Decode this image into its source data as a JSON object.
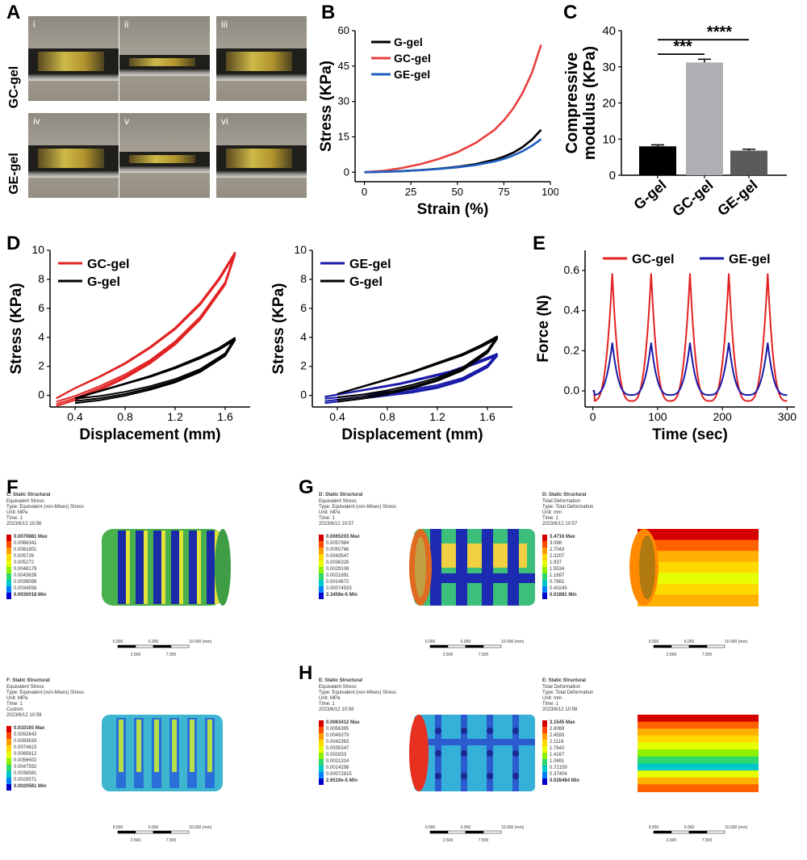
{
  "panels": {
    "A": {
      "letter": "A",
      "row_labels": [
        "GC-gel",
        "GE-gel"
      ],
      "cells": [
        "i",
        "ii",
        "iii",
        "iv",
        "v",
        "vi"
      ]
    },
    "B": {
      "letter": "B",
      "colors": {
        "G-gel": "#000000",
        "GC-gel": "#e8403f",
        "GE-gel": "#1f5fbf"
      }
    },
    "C": {
      "letter": "C",
      "colors": {
        "G-gel": "#000000",
        "GC-gel": "#b0adb5",
        "GE-gel": "#5a5a5a"
      }
    },
    "D": {
      "letter": "D"
    },
    "E": {
      "letter": "E"
    },
    "F": {
      "letter": "F",
      "top": {
        "title": "C: Static Structural",
        "lines": [
          "Equivalent Stress",
          "Type: Equivalent (von-Mises) Stress",
          "Unit: MPa",
          "Time: 1",
          "2023/6/12 10:56"
        ],
        "legend": [
          "0.0070881 Max",
          "0.0066341",
          "0.0061801",
          "0.005726",
          "0.005272",
          "0.0048179",
          "0.0043639",
          "0.0039099",
          "0.0034558",
          "0.0030018 Min"
        ],
        "scale": [
          "0.000",
          "5.000",
          "10.000 (mm)",
          "2.500",
          "7.500"
        ]
      },
      "bottom": {
        "title": "F: Static Structural",
        "lines": [
          "Equivalent Stress",
          "Type: Equivalent (von-Mises) Stress",
          "Unit: MPa",
          "Time: 1",
          "Custom",
          "2023/6/12 10:59"
        ],
        "legend": [
          "0.010165 Max",
          "0.0092643",
          "0.0083633",
          "0.0074623",
          "0.0065612",
          "0.0056602",
          "0.0047592",
          "0.0038581",
          "0.0029571",
          "0.0020561 Min"
        ],
        "scale": [
          "0.000",
          "5.000",
          "10.000 (mm)",
          "2.500",
          "7.500"
        ]
      }
    },
    "G": {
      "letter": "G",
      "left": {
        "title": "D: Static Structural",
        "lines": [
          "Equivalent Stress",
          "Type: Equivalent (von-Mises) Stress",
          "Unit: MPa",
          "Time: 1",
          "2023/6/12 10:57"
        ],
        "legend": [
          "0.0065203 Max",
          "0.0057984",
          "0.0050766",
          "0.0043547",
          "0.0036328",
          "0.0029109",
          "0.0021891",
          "0.0014672",
          "0.00074533",
          "2.3459e-5 Min"
        ],
        "scale": [
          "0.000",
          "5.000",
          "10.000 (mm)",
          "2.500",
          "7.500"
        ]
      },
      "right": {
        "title": "D: Static Structural",
        "lines": [
          "Total Deformation",
          "Type: Total Deformation",
          "Unit: mm",
          "Time: 1",
          "2023/6/12 10:57"
        ],
        "legend": [
          "3.4716 Max",
          "3.088",
          "2.7043",
          "2.3207",
          "1.937",
          "1.5534",
          "1.1697",
          "0.7861",
          "0.40245",
          "0.01881 Min"
        ],
        "scale": [
          "0.000",
          "5.000",
          "10.000 (mm)",
          "2.500",
          "7.500"
        ]
      }
    },
    "H": {
      "letter": "H",
      "left": {
        "title": "E: Static Structural",
        "lines": [
          "Equivalent Stress",
          "Type: Equivalent (von-Mises) Stress",
          "Unit: MPa",
          "Time: 1",
          "2023/6/12 10:58"
        ],
        "legend": [
          "0.0063412 Max",
          "0.0056395",
          "0.0049379",
          "0.0042363",
          "0.0035347",
          "0.002833",
          "0.0021314",
          "0.0014298",
          "0.00072815",
          "2.6519e-5 Min"
        ],
        "scale": [
          "0.000",
          "5.000",
          "10.000 (mm)",
          "2.500",
          "7.500"
        ]
      },
      "right": {
        "title": "E: Static Structural",
        "lines": [
          "Total Deformation",
          "Type: Total Deformation",
          "Unit: mm",
          "Time: 1",
          "2023/6/12 10:58"
        ],
        "legend": [
          "3.1545 Max",
          "2.8069",
          "2.4593",
          "2.1118",
          "1.7642",
          "1.4167",
          "1.0691",
          "0.72159",
          "0.37404",
          "0.026484 Min"
        ],
        "scale": [
          "0.000",
          "5.000",
          "10.000 (mm)",
          "2.500",
          "7.500"
        ]
      }
    },
    "fea_colors": [
      "#d40000",
      "#ff4a00",
      "#ff9a00",
      "#ffd800",
      "#e6ff00",
      "#8cf000",
      "#2fd86a",
      "#00c8c8",
      "#0080ff",
      "#0000c8"
    ]
  },
  "chart_data": [
    {
      "id": "B",
      "type": "line",
      "title": "",
      "xlabel": "Strain (%)",
      "ylabel": "Stress (KPa)",
      "xlim": [
        -5,
        100
      ],
      "ylim": [
        -4,
        60
      ],
      "xticks": [
        "0",
        "25",
        "50",
        "75",
        "100"
      ],
      "yticks": [
        "0",
        "15",
        "30",
        "45",
        "60"
      ],
      "legend": "top-left",
      "series": [
        {
          "name": "G-gel",
          "x": [
            0,
            10,
            20,
            30,
            40,
            50,
            60,
            70,
            75,
            80,
            85,
            90,
            95
          ],
          "y": [
            0,
            0.2,
            0.5,
            0.9,
            1.5,
            2.3,
            3.5,
            5.3,
            6.6,
            8.3,
            10.6,
            13.8,
            18.0
          ]
        },
        {
          "name": "GC-gel",
          "x": [
            0,
            10,
            20,
            30,
            40,
            50,
            60,
            70,
            75,
            80,
            85,
            90,
            95
          ],
          "y": [
            0,
            0.6,
            1.8,
            3.4,
            5.6,
            8.5,
            12.5,
            18.0,
            22.0,
            27.0,
            33.5,
            42.0,
            54.0
          ]
        },
        {
          "name": "GE-gel",
          "x": [
            0,
            10,
            20,
            30,
            40,
            50,
            60,
            70,
            75,
            80,
            85,
            90,
            95
          ],
          "y": [
            0,
            0.2,
            0.5,
            0.9,
            1.4,
            2.1,
            3.1,
            4.6,
            5.7,
            7.1,
            8.9,
            11.2,
            14.0
          ]
        }
      ]
    },
    {
      "id": "C",
      "type": "bar",
      "title": "",
      "xlabel": "",
      "ylabel": "Compressive modulus (KPa)",
      "ylabel_lines": [
        "Compressive",
        "modulus (KPa)"
      ],
      "categories": [
        "G-gel",
        "GC-gel",
        "GE-gel"
      ],
      "values": [
        8.0,
        31.2,
        6.8
      ],
      "errors": [
        0.4,
        0.9,
        0.4
      ],
      "ylim": [
        0,
        40
      ],
      "yticks": [
        "0",
        "10",
        "20",
        "30",
        "40"
      ],
      "annotations": [
        {
          "text": "***",
          "between": [
            "G-gel",
            "GC-gel"
          ]
        },
        {
          "text": "****",
          "between": [
            "G-gel",
            "GE-gel"
          ]
        }
      ]
    },
    {
      "id": "D-left",
      "type": "line",
      "title": "",
      "xlabel": "Displacement (mm)",
      "ylabel": "Stress (KPa)",
      "xlim": [
        0.2,
        1.8
      ],
      "ylim": [
        -0.8,
        10
      ],
      "xticks": [
        "0.4",
        "0.8",
        "1.2",
        "1.6"
      ],
      "yticks": [
        "0",
        "2",
        "4",
        "6",
        "8",
        "10"
      ],
      "legend": "top-left",
      "series": [
        {
          "name": "GC-gel",
          "x": [
            0.25,
            0.4,
            0.6,
            0.8,
            1.0,
            1.2,
            1.4,
            1.55,
            1.68,
            1.6,
            1.4,
            1.2,
            1.0,
            0.8,
            0.6,
            0.4,
            0.25
          ],
          "y": [
            -0.2,
            0.5,
            1.3,
            2.2,
            3.3,
            4.6,
            6.3,
            8.0,
            9.8,
            7.7,
            5.3,
            3.6,
            2.3,
            1.3,
            0.5,
            -0.2,
            -0.6
          ]
        },
        {
          "name": "G-gel",
          "x": [
            0.4,
            0.6,
            0.8,
            1.0,
            1.2,
            1.4,
            1.55,
            1.68,
            1.6,
            1.4,
            1.2,
            1.0,
            0.8,
            0.6,
            0.4
          ],
          "y": [
            -0.2,
            0.3,
            0.8,
            1.3,
            1.9,
            2.6,
            3.2,
            3.9,
            2.8,
            1.7,
            1.0,
            0.5,
            0.1,
            -0.2,
            -0.4
          ]
        }
      ]
    },
    {
      "id": "D-right",
      "type": "line",
      "title": "",
      "xlabel": "Displacement (mm)",
      "ylabel": "Stress (KPa)",
      "xlim": [
        0.2,
        1.8
      ],
      "ylim": [
        -0.8,
        10
      ],
      "xticks": [
        "0.4",
        "0.8",
        "1.2",
        "1.6"
      ],
      "yticks": [
        "0",
        "2",
        "4",
        "6",
        "8",
        "10"
      ],
      "legend": "top-left",
      "series": [
        {
          "name": "GE-gel",
          "x": [
            0.3,
            0.5,
            0.7,
            0.9,
            1.1,
            1.3,
            1.5,
            1.68,
            1.6,
            1.4,
            1.2,
            1.0,
            0.8,
            0.6,
            0.4,
            0.3
          ],
          "y": [
            -0.1,
            0.2,
            0.5,
            0.8,
            1.2,
            1.6,
            2.2,
            2.8,
            2.0,
            1.1,
            0.6,
            0.3,
            0.1,
            -0.1,
            -0.3,
            -0.4
          ]
        },
        {
          "name": "G-gel",
          "x": [
            0.4,
            0.6,
            0.8,
            1.0,
            1.2,
            1.4,
            1.55,
            1.68,
            1.6,
            1.4,
            1.2,
            1.0,
            0.8,
            0.6,
            0.4
          ],
          "y": [
            0.1,
            0.6,
            1.1,
            1.6,
            2.2,
            2.8,
            3.4,
            4.0,
            3.0,
            1.8,
            1.1,
            0.6,
            0.2,
            -0.1,
            -0.3
          ]
        }
      ]
    },
    {
      "id": "E",
      "type": "line",
      "title": "",
      "xlabel": "Time (sec)",
      "ylabel": "Force (N)",
      "xlim": [
        -12,
        312
      ],
      "ylim": [
        -0.08,
        0.7
      ],
      "xticks": [
        "0",
        "100",
        "200",
        "300"
      ],
      "yticks": [
        "0.0",
        "0.2",
        "0.4",
        "0.6"
      ],
      "legend": "top",
      "series": [
        {
          "name": "GC-gel",
          "peaks_x": [
            30,
            90,
            150,
            210,
            270
          ],
          "peak_y": 0.585,
          "trough_y": -0.05,
          "period": 60
        },
        {
          "name": "GE-gel",
          "peaks_x": [
            30,
            90,
            150,
            210,
            270
          ],
          "peak_y": 0.24,
          "trough_y": -0.02,
          "period": 60
        }
      ]
    }
  ]
}
